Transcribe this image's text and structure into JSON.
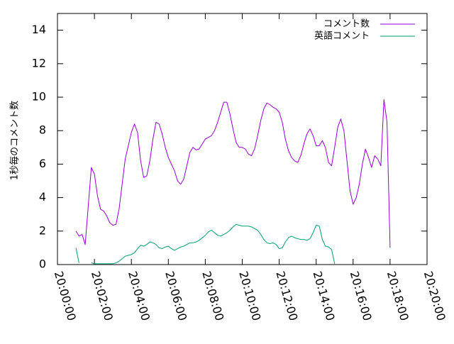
{
  "chart_data": {
    "type": "line",
    "title": "",
    "xlabel": "",
    "ylabel": "1秒毎のコメント数",
    "xlim": [
      "20:00:00",
      "20:20:00"
    ],
    "ylim": [
      0,
      15
    ],
    "grid": false,
    "legend_position": "top-right",
    "x_ticks": [
      "20:00:00",
      "20:02:00",
      "20:04:00",
      "20:06:00",
      "20:08:00",
      "20:10:00",
      "20:12:00",
      "20:14:00",
      "20:16:00",
      "20:18:00",
      "20:20:00"
    ],
    "y_ticks": [
      0,
      2,
      4,
      6,
      8,
      10,
      12,
      14
    ],
    "series": [
      {
        "name": "コメント数",
        "color": "#9400d3",
        "points": [
          [
            "20:01:00",
            2.0
          ],
          [
            "20:01:10",
            1.7
          ],
          [
            "20:01:20",
            1.8
          ],
          [
            "20:01:30",
            1.2
          ],
          [
            "20:01:40",
            3.5
          ],
          [
            "20:01:50",
            5.8
          ],
          [
            "20:02:00",
            5.4
          ],
          [
            "20:02:10",
            4.1
          ],
          [
            "20:02:20",
            3.3
          ],
          [
            "20:02:30",
            3.2
          ],
          [
            "20:02:40",
            2.9
          ],
          [
            "20:02:50",
            2.5
          ],
          [
            "20:03:00",
            2.35
          ],
          [
            "20:03:10",
            2.4
          ],
          [
            "20:03:20",
            3.3
          ],
          [
            "20:03:30",
            4.8
          ],
          [
            "20:03:40",
            6.3
          ],
          [
            "20:03:50",
            7.1
          ],
          [
            "20:04:00",
            7.9
          ],
          [
            "20:04:10",
            8.4
          ],
          [
            "20:04:20",
            7.9
          ],
          [
            "20:04:30",
            6.2
          ],
          [
            "20:04:40",
            5.2
          ],
          [
            "20:04:50",
            5.3
          ],
          [
            "20:05:00",
            6.2
          ],
          [
            "20:05:10",
            7.5
          ],
          [
            "20:05:20",
            8.5
          ],
          [
            "20:05:30",
            8.4
          ],
          [
            "20:05:40",
            7.8
          ],
          [
            "20:05:50",
            7.0
          ],
          [
            "20:06:00",
            6.4
          ],
          [
            "20:06:10",
            6.0
          ],
          [
            "20:06:20",
            5.6
          ],
          [
            "20:06:30",
            5.0
          ],
          [
            "20:06:40",
            4.8
          ],
          [
            "20:06:50",
            5.1
          ],
          [
            "20:07:00",
            5.9
          ],
          [
            "20:07:10",
            6.7
          ],
          [
            "20:07:20",
            7.0
          ],
          [
            "20:07:30",
            6.85
          ],
          [
            "20:07:40",
            6.9
          ],
          [
            "20:07:50",
            7.2
          ],
          [
            "20:08:00",
            7.5
          ],
          [
            "20:08:10",
            7.6
          ],
          [
            "20:08:20",
            7.7
          ],
          [
            "20:08:30",
            8.0
          ],
          [
            "20:08:40",
            8.5
          ],
          [
            "20:08:50",
            9.1
          ],
          [
            "20:09:00",
            9.7
          ],
          [
            "20:09:10",
            9.7
          ],
          [
            "20:09:20",
            9.0
          ],
          [
            "20:09:30",
            8.1
          ],
          [
            "20:09:40",
            7.3
          ],
          [
            "20:09:50",
            7.0
          ],
          [
            "20:10:00",
            7.0
          ],
          [
            "20:10:10",
            6.9
          ],
          [
            "20:10:20",
            6.6
          ],
          [
            "20:10:30",
            6.5
          ],
          [
            "20:10:40",
            6.9
          ],
          [
            "20:10:50",
            7.7
          ],
          [
            "20:11:00",
            8.6
          ],
          [
            "20:11:10",
            9.3
          ],
          [
            "20:11:20",
            9.65
          ],
          [
            "20:11:30",
            9.55
          ],
          [
            "20:11:40",
            9.4
          ],
          [
            "20:11:50",
            9.3
          ],
          [
            "20:12:00",
            9.1
          ],
          [
            "20:12:10",
            8.5
          ],
          [
            "20:12:20",
            7.5
          ],
          [
            "20:12:30",
            6.8
          ],
          [
            "20:12:40",
            6.4
          ],
          [
            "20:12:50",
            6.2
          ],
          [
            "20:13:00",
            6.1
          ],
          [
            "20:13:10",
            6.5
          ],
          [
            "20:13:20",
            7.2
          ],
          [
            "20:13:30",
            7.8
          ],
          [
            "20:13:40",
            8.1
          ],
          [
            "20:13:50",
            7.7
          ],
          [
            "20:14:00",
            7.1
          ],
          [
            "20:14:10",
            7.1
          ],
          [
            "20:14:20",
            7.4
          ],
          [
            "20:14:30",
            7.0
          ],
          [
            "20:14:40",
            6.1
          ],
          [
            "20:14:50",
            5.9
          ],
          [
            "20:15:00",
            7.0
          ],
          [
            "20:15:10",
            8.2
          ],
          [
            "20:15:20",
            8.7
          ],
          [
            "20:15:30",
            8.0
          ],
          [
            "20:15:40",
            6.2
          ],
          [
            "20:15:50",
            4.4
          ],
          [
            "20:16:00",
            3.6
          ],
          [
            "20:16:10",
            4.0
          ],
          [
            "20:16:20",
            4.8
          ],
          [
            "20:16:30",
            6.0
          ],
          [
            "20:16:40",
            6.9
          ],
          [
            "20:16:50",
            6.4
          ],
          [
            "20:17:00",
            5.8
          ],
          [
            "20:17:10",
            6.5
          ],
          [
            "20:17:20",
            6.3
          ],
          [
            "20:17:30",
            5.9
          ],
          [
            "20:17:40",
            9.85
          ],
          [
            "20:17:50",
            8.5
          ],
          [
            "20:18:00",
            1.0
          ]
        ]
      },
      {
        "name": "英語コメント",
        "color": "#009e73",
        "points": [
          [
            "20:01:00",
            1.0
          ],
          [
            "20:01:10",
            0.1
          ],
          [
            "20:01:20",
            null
          ],
          [
            "20:01:50",
            0.1
          ],
          [
            "20:02:00",
            0.05
          ],
          [
            "20:02:30",
            0.05
          ],
          [
            "20:03:00",
            0.05
          ],
          [
            "20:03:10",
            0.1
          ],
          [
            "20:03:20",
            0.2
          ],
          [
            "20:03:30",
            0.35
          ],
          [
            "20:03:40",
            0.5
          ],
          [
            "20:03:50",
            0.55
          ],
          [
            "20:04:00",
            0.6
          ],
          [
            "20:04:10",
            0.7
          ],
          [
            "20:04:20",
            0.95
          ],
          [
            "20:04:30",
            1.15
          ],
          [
            "20:04:40",
            1.1
          ],
          [
            "20:04:50",
            1.2
          ],
          [
            "20:05:00",
            1.35
          ],
          [
            "20:05:10",
            1.3
          ],
          [
            "20:05:20",
            1.2
          ],
          [
            "20:05:30",
            1.0
          ],
          [
            "20:05:40",
            0.95
          ],
          [
            "20:05:50",
            1.05
          ],
          [
            "20:06:00",
            1.1
          ],
          [
            "20:06:10",
            0.95
          ],
          [
            "20:06:20",
            0.85
          ],
          [
            "20:06:30",
            0.95
          ],
          [
            "20:06:40",
            1.05
          ],
          [
            "20:06:50",
            1.1
          ],
          [
            "20:07:00",
            1.2
          ],
          [
            "20:07:10",
            1.3
          ],
          [
            "20:07:20",
            1.3
          ],
          [
            "20:07:30",
            1.35
          ],
          [
            "20:07:40",
            1.45
          ],
          [
            "20:07:50",
            1.6
          ],
          [
            "20:08:00",
            1.75
          ],
          [
            "20:08:10",
            1.95
          ],
          [
            "20:08:20",
            2.05
          ],
          [
            "20:08:30",
            1.9
          ],
          [
            "20:08:40",
            1.75
          ],
          [
            "20:08:50",
            1.7
          ],
          [
            "20:09:00",
            1.8
          ],
          [
            "20:09:10",
            1.9
          ],
          [
            "20:09:20",
            2.05
          ],
          [
            "20:09:30",
            2.25
          ],
          [
            "20:09:40",
            2.4
          ],
          [
            "20:09:50",
            2.35
          ],
          [
            "20:10:00",
            2.3
          ],
          [
            "20:10:10",
            2.3
          ],
          [
            "20:10:20",
            2.3
          ],
          [
            "20:10:30",
            2.25
          ],
          [
            "20:10:40",
            2.15
          ],
          [
            "20:10:50",
            2.05
          ],
          [
            "20:11:00",
            1.8
          ],
          [
            "20:11:10",
            1.5
          ],
          [
            "20:11:20",
            1.3
          ],
          [
            "20:11:30",
            1.25
          ],
          [
            "20:11:40",
            1.3
          ],
          [
            "20:11:50",
            1.2
          ],
          [
            "20:12:00",
            0.95
          ],
          [
            "20:12:10",
            1.0
          ],
          [
            "20:12:20",
            1.35
          ],
          [
            "20:12:30",
            1.6
          ],
          [
            "20:12:40",
            1.7
          ],
          [
            "20:12:50",
            1.6
          ],
          [
            "20:13:00",
            1.55
          ],
          [
            "20:13:10",
            1.5
          ],
          [
            "20:13:20",
            1.5
          ],
          [
            "20:13:30",
            1.45
          ],
          [
            "20:13:40",
            1.55
          ],
          [
            "20:13:50",
            1.9
          ],
          [
            "20:14:00",
            2.35
          ],
          [
            "20:14:10",
            2.3
          ],
          [
            "20:14:20",
            1.5
          ],
          [
            "20:14:30",
            1.1
          ],
          [
            "20:14:40",
            1.05
          ],
          [
            "20:14:50",
            0.9
          ],
          [
            "20:15:00",
            0.05
          ]
        ]
      }
    ]
  }
}
